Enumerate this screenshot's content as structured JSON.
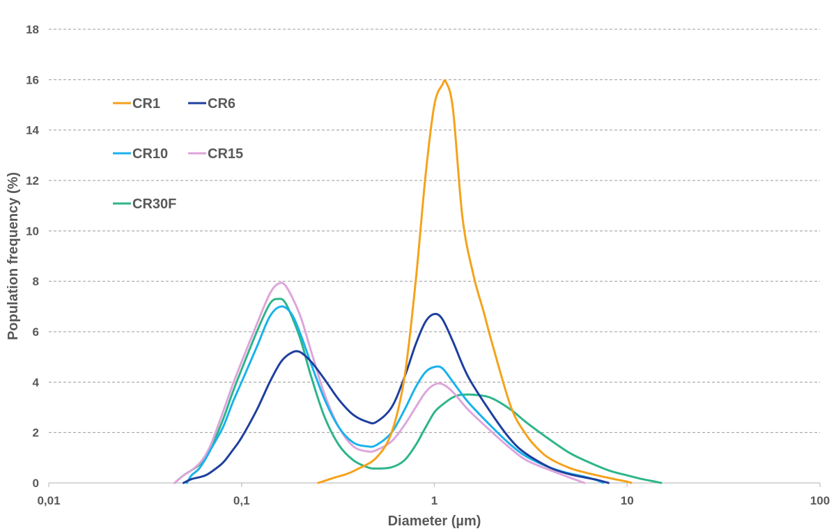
{
  "chart_data": {
    "type": "line",
    "title": "",
    "xlabel": "Diameter (µm)",
    "ylabel": "Population frequency (%)",
    "x_scale": "log",
    "xlim": [
      0.01,
      100
    ],
    "ylim": [
      0,
      18
    ],
    "x_ticks": [
      {
        "value": 0.01,
        "label": "0,01"
      },
      {
        "value": 0.1,
        "label": "0,1"
      },
      {
        "value": 1,
        "label": "1"
      },
      {
        "value": 10,
        "label": "10"
      },
      {
        "value": 100,
        "label": "100"
      }
    ],
    "y_ticks": [
      {
        "value": 0,
        "label": "0"
      },
      {
        "value": 2,
        "label": "2"
      },
      {
        "value": 4,
        "label": "4"
      },
      {
        "value": 6,
        "label": "6"
      },
      {
        "value": 8,
        "label": "8"
      },
      {
        "value": 10,
        "label": "10"
      },
      {
        "value": 12,
        "label": "12"
      },
      {
        "value": 14,
        "label": "14"
      },
      {
        "value": 16,
        "label": "16"
      },
      {
        "value": 18,
        "label": "18"
      }
    ],
    "grid": "horizontal dashed",
    "legend_position": "top-left",
    "series": [
      {
        "name": "CR1",
        "color": "#F5A21B",
        "points": [
          [
            0.25,
            0.0
          ],
          [
            0.3,
            0.2
          ],
          [
            0.35,
            0.35
          ],
          [
            0.4,
            0.55
          ],
          [
            0.5,
            1.0
          ],
          [
            0.6,
            2.0
          ],
          [
            0.7,
            4.2
          ],
          [
            0.8,
            8.0
          ],
          [
            0.9,
            12.2
          ],
          [
            1.0,
            15.0
          ],
          [
            1.1,
            15.8
          ],
          [
            1.15,
            15.9
          ],
          [
            1.25,
            14.8
          ],
          [
            1.4,
            10.5
          ],
          [
            1.6,
            8.2
          ],
          [
            1.8,
            6.8
          ],
          [
            2.0,
            5.5
          ],
          [
            2.5,
            3.0
          ],
          [
            3.0,
            1.9
          ],
          [
            3.5,
            1.3
          ],
          [
            4.0,
            0.95
          ],
          [
            5.0,
            0.6
          ],
          [
            6.0,
            0.42
          ],
          [
            8.0,
            0.2
          ],
          [
            10.0,
            0.05
          ],
          [
            10.5,
            0.0
          ]
        ]
      },
      {
        "name": "CR6",
        "color": "#1E3F9E",
        "points": [
          [
            0.05,
            0.0
          ],
          [
            0.055,
            0.15
          ],
          [
            0.06,
            0.22
          ],
          [
            0.065,
            0.3
          ],
          [
            0.07,
            0.45
          ],
          [
            0.08,
            0.8
          ],
          [
            0.09,
            1.3
          ],
          [
            0.1,
            1.8
          ],
          [
            0.12,
            2.9
          ],
          [
            0.14,
            4.0
          ],
          [
            0.16,
            4.8
          ],
          [
            0.18,
            5.15
          ],
          [
            0.2,
            5.2
          ],
          [
            0.23,
            4.8
          ],
          [
            0.27,
            4.1
          ],
          [
            0.32,
            3.3
          ],
          [
            0.38,
            2.7
          ],
          [
            0.45,
            2.42
          ],
          [
            0.5,
            2.42
          ],
          [
            0.6,
            3.0
          ],
          [
            0.7,
            4.2
          ],
          [
            0.8,
            5.5
          ],
          [
            0.9,
            6.4
          ],
          [
            1.0,
            6.7
          ],
          [
            1.1,
            6.5
          ],
          [
            1.25,
            5.6
          ],
          [
            1.5,
            4.2
          ],
          [
            2.0,
            2.7
          ],
          [
            2.5,
            1.7
          ],
          [
            3.0,
            1.15
          ],
          [
            4.0,
            0.6
          ],
          [
            5.0,
            0.35
          ],
          [
            6.0,
            0.22
          ],
          [
            7.0,
            0.12
          ],
          [
            8.0,
            0.0
          ]
        ]
      },
      {
        "name": "CR10",
        "color": "#19B2EC",
        "points": [
          [
            0.052,
            0.0
          ],
          [
            0.055,
            0.3
          ],
          [
            0.06,
            0.55
          ],
          [
            0.065,
            0.95
          ],
          [
            0.07,
            1.4
          ],
          [
            0.08,
            2.2
          ],
          [
            0.09,
            3.2
          ],
          [
            0.1,
            4.0
          ],
          [
            0.12,
            5.4
          ],
          [
            0.14,
            6.6
          ],
          [
            0.16,
            7.0
          ],
          [
            0.18,
            6.75
          ],
          [
            0.2,
            6.0
          ],
          [
            0.23,
            4.7
          ],
          [
            0.27,
            3.3
          ],
          [
            0.32,
            2.2
          ],
          [
            0.38,
            1.6
          ],
          [
            0.45,
            1.45
          ],
          [
            0.5,
            1.5
          ],
          [
            0.6,
            2.0
          ],
          [
            0.7,
            2.9
          ],
          [
            0.8,
            3.8
          ],
          [
            0.9,
            4.4
          ],
          [
            1.0,
            4.6
          ],
          [
            1.1,
            4.55
          ],
          [
            1.25,
            4.0
          ],
          [
            1.5,
            3.2
          ],
          [
            2.0,
            2.2
          ],
          [
            2.5,
            1.5
          ],
          [
            3.0,
            1.05
          ],
          [
            4.0,
            0.6
          ],
          [
            5.0,
            0.38
          ],
          [
            6.0,
            0.25
          ],
          [
            7.0,
            0.1
          ],
          [
            7.5,
            0.0
          ]
        ]
      },
      {
        "name": "CR15",
        "color": "#DEA5DA",
        "points": [
          [
            0.045,
            0.0
          ],
          [
            0.05,
            0.3
          ],
          [
            0.055,
            0.5
          ],
          [
            0.06,
            0.75
          ],
          [
            0.065,
            1.1
          ],
          [
            0.07,
            1.6
          ],
          [
            0.08,
            2.8
          ],
          [
            0.09,
            3.9
          ],
          [
            0.1,
            4.8
          ],
          [
            0.12,
            6.3
          ],
          [
            0.14,
            7.5
          ],
          [
            0.155,
            7.9
          ],
          [
            0.17,
            7.8
          ],
          [
            0.2,
            6.7
          ],
          [
            0.23,
            5.2
          ],
          [
            0.27,
            3.5
          ],
          [
            0.32,
            2.2
          ],
          [
            0.38,
            1.45
          ],
          [
            0.45,
            1.25
          ],
          [
            0.5,
            1.3
          ],
          [
            0.6,
            1.65
          ],
          [
            0.7,
            2.3
          ],
          [
            0.8,
            3.0
          ],
          [
            0.9,
            3.6
          ],
          [
            1.0,
            3.9
          ],
          [
            1.1,
            3.92
          ],
          [
            1.25,
            3.6
          ],
          [
            1.5,
            2.9
          ],
          [
            2.0,
            2.0
          ],
          [
            2.5,
            1.35
          ],
          [
            3.0,
            0.9
          ],
          [
            4.0,
            0.5
          ],
          [
            5.0,
            0.22
          ],
          [
            6.0,
            0.0
          ]
        ]
      },
      {
        "name": "CR30F",
        "color": "#2DB58A",
        "points": [
          [
            0.045,
            0.0
          ],
          [
            0.05,
            0.3
          ],
          [
            0.055,
            0.5
          ],
          [
            0.06,
            0.7
          ],
          [
            0.065,
            1.0
          ],
          [
            0.07,
            1.45
          ],
          [
            0.08,
            2.5
          ],
          [
            0.09,
            3.6
          ],
          [
            0.1,
            4.5
          ],
          [
            0.12,
            6.0
          ],
          [
            0.14,
            7.1
          ],
          [
            0.155,
            7.3
          ],
          [
            0.17,
            7.1
          ],
          [
            0.2,
            5.8
          ],
          [
            0.23,
            4.2
          ],
          [
            0.27,
            2.6
          ],
          [
            0.32,
            1.5
          ],
          [
            0.38,
            0.9
          ],
          [
            0.45,
            0.62
          ],
          [
            0.5,
            0.57
          ],
          [
            0.6,
            0.62
          ],
          [
            0.7,
            0.9
          ],
          [
            0.8,
            1.5
          ],
          [
            0.9,
            2.2
          ],
          [
            1.0,
            2.8
          ],
          [
            1.1,
            3.1
          ],
          [
            1.25,
            3.4
          ],
          [
            1.4,
            3.5
          ],
          [
            1.7,
            3.48
          ],
          [
            2.0,
            3.35
          ],
          [
            2.5,
            2.9
          ],
          [
            3.0,
            2.4
          ],
          [
            4.0,
            1.7
          ],
          [
            5.0,
            1.2
          ],
          [
            6.0,
            0.9
          ],
          [
            8.0,
            0.5
          ],
          [
            10.0,
            0.3
          ],
          [
            12.0,
            0.15
          ],
          [
            14.0,
            0.05
          ],
          [
            15.0,
            0.0
          ]
        ]
      }
    ]
  }
}
